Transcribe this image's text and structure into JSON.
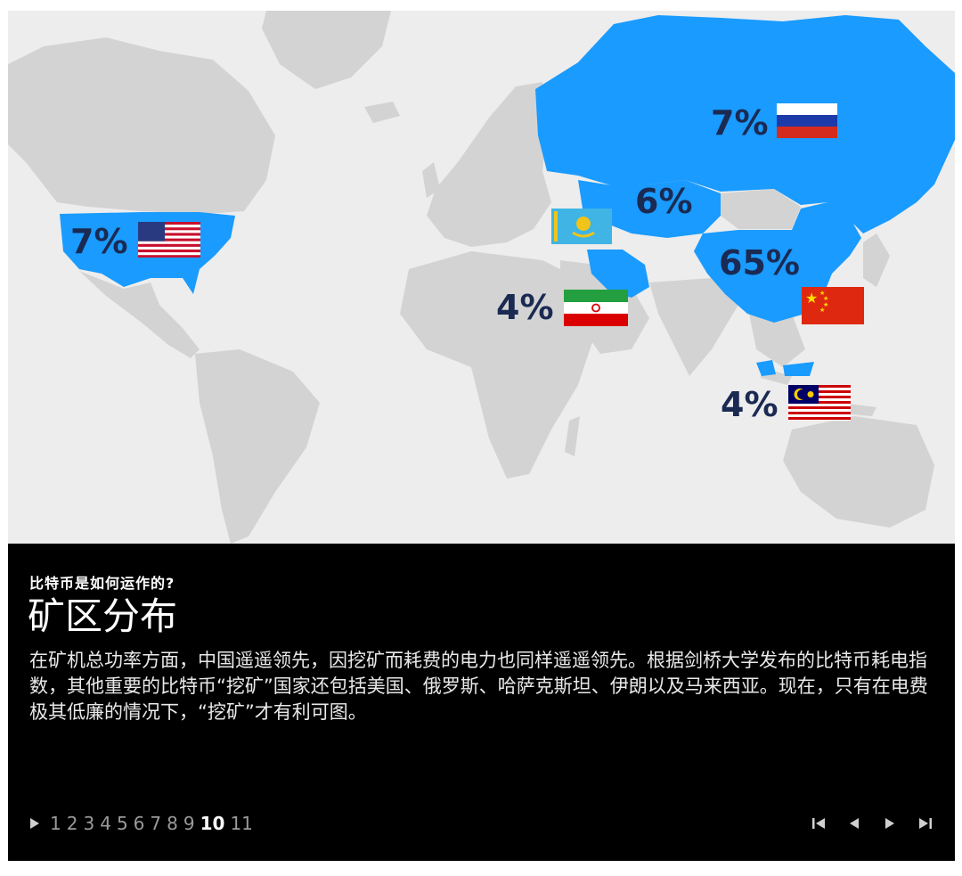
{
  "map": {
    "labels": {
      "russia": "7%",
      "usa": "7%",
      "kazakhstan": "6%",
      "china": "65%",
      "iran": "4%",
      "malaysia": "4%"
    },
    "colors": {
      "ocean": "#ededed",
      "land": "#d3d3d3",
      "highlight": "#1a9bff",
      "label": "#1b2a52"
    }
  },
  "caption": {
    "kicker": "比特币是如何运作的?",
    "title": "矿区分布",
    "body": "在矿机总功率方面，中国遥遥领先，因挖矿而耗费的电力也同样遥遥领先。根据剑桥大学发布的比特币耗电指数，其他重要的比特币“挖矿”国家还包括美国、俄罗斯、哈萨克斯坦、伊朗以及马来西亚。现在，只有在电费极其低廉的情况下，“挖矿”才有利可图。"
  },
  "pagination": {
    "pages": [
      "1",
      "2",
      "3",
      "4",
      "5",
      "6",
      "7",
      "8",
      "9",
      "10",
      "11"
    ],
    "current": "10",
    "icons": [
      "play-icon",
      "first-page-icon",
      "prev-page-icon",
      "next-page-icon",
      "last-page-icon"
    ]
  }
}
